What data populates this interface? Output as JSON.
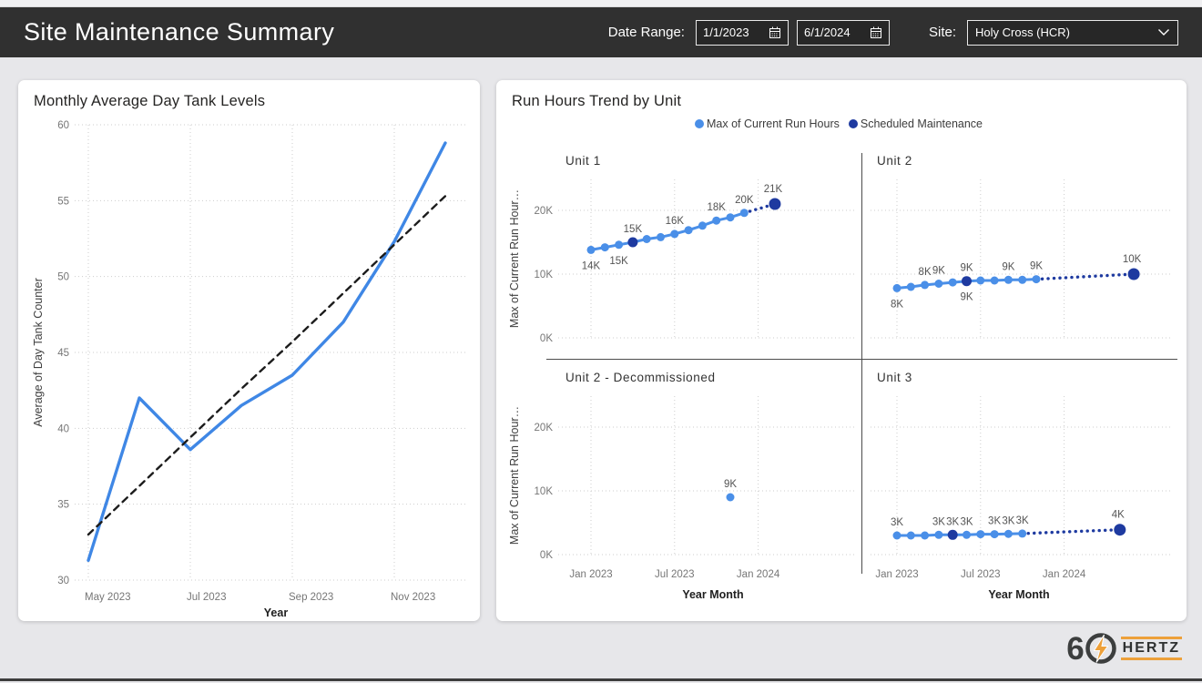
{
  "header": {
    "title": "Site Maintenance Summary",
    "date_range_label": "Date Range:",
    "date_from": "1/1/2023",
    "date_to": "6/1/2024",
    "site_label": "Site:",
    "site_value": "Holy Cross (HCR)"
  },
  "logo": {
    "digit": "6",
    "text": "HERTZ"
  },
  "colors": {
    "actual": "#4a8fe8",
    "scheduled": "#1e3aa0",
    "tank_line": "#3f87e5",
    "trend": "#1c1c1c"
  },
  "panels": {
    "run_hours": {
      "title": "Run Hours Trend by Unit",
      "y_axis_title": "Max of Current Run Hour…",
      "x_axis_title": "Year Month",
      "legend": [
        {
          "label": "Max of Current Run Hours",
          "color": "#4a8fe8"
        },
        {
          "label": "Scheduled Maintenance",
          "color": "#1e3aa0"
        }
      ]
    }
  },
  "chart_data": [
    {
      "id": "tank_levels",
      "type": "line",
      "title": "Monthly Average Day Tank Levels",
      "xlabel": "Year",
      "ylabel": "Average of Day Tank Counter",
      "ylim": [
        30,
        60
      ],
      "yticks": [
        30,
        35,
        40,
        45,
        50,
        55,
        60
      ],
      "x": [
        "May 2023",
        "Jun 2023",
        "Jul 2023",
        "Aug 2023",
        "Sep 2023",
        "Oct 2023",
        "Nov 2023",
        "Dec 2023"
      ],
      "xtick_idx": [
        0,
        2,
        4,
        6
      ],
      "xtick_labels": [
        "May 2023",
        "Jul 2023",
        "Sep 2023",
        "Nov 2023"
      ],
      "series": [
        {
          "name": "Average of Day Tank Counter",
          "style": "solid",
          "color": "#3f87e5",
          "values": [
            31.3,
            42,
            38.6,
            41.5,
            43.5,
            47,
            52.3,
            58.8
          ]
        },
        {
          "name": "Trend",
          "style": "dashed",
          "color": "#1c1c1c",
          "values": [
            33,
            36.2,
            39.4,
            42.6,
            45.7,
            48.9,
            52.1,
            55.3
          ]
        }
      ]
    },
    {
      "id": "unit1",
      "unit": true,
      "type": "line",
      "title": "Unit 1",
      "col": 0,
      "row": 0,
      "ylim": [
        0,
        25
      ],
      "yticks": [
        0,
        10,
        20
      ],
      "ytick_labels": [
        "0K",
        "10K",
        "20K"
      ],
      "xticks": [
        0,
        6,
        12
      ],
      "xtick_labels": [
        "Jan 2023",
        "Jul 2023",
        "Jan 2024"
      ],
      "actual": {
        "start_month": 0,
        "months": [
          "Jan 2023",
          "Feb 2023",
          "Mar 2023",
          "Apr 2023",
          "May 2023",
          "Jun 2023",
          "Jul 2023",
          "Aug 2023",
          "Sep 2023",
          "Oct 2023",
          "Nov 2023",
          "Dec 2023"
        ],
        "values": [
          13.8,
          14.2,
          14.6,
          15,
          15.5,
          15.8,
          16.3,
          16.9,
          17.6,
          18.4,
          18.9,
          19.6
        ]
      },
      "scheduled_month": 3,
      "forecast": {
        "month": 13.2,
        "month_label": "Feb 2024",
        "value": 21,
        "label": "21K"
      },
      "labels": [
        {
          "month": 0,
          "text": "14K",
          "pos": "below"
        },
        {
          "month": 2,
          "text": "15K",
          "pos": "below"
        },
        {
          "month": 3,
          "text": "15K",
          "pos": "above"
        },
        {
          "month": 6,
          "text": "16K",
          "pos": "above"
        },
        {
          "month": 9,
          "text": "18K",
          "pos": "above"
        },
        {
          "month": 11,
          "text": "20K",
          "pos": "above"
        }
      ]
    },
    {
      "id": "unit2",
      "unit": true,
      "type": "line",
      "title": "Unit 2",
      "col": 1,
      "row": 0,
      "ylim": [
        0,
        25
      ],
      "yticks": [
        0,
        10,
        20
      ],
      "ytick_labels": [
        "0K",
        "10K",
        "20K"
      ],
      "xticks": [
        0,
        6,
        12
      ],
      "xtick_labels": [
        "Jan 2023",
        "Jul 2023",
        "Jan 2024"
      ],
      "actual": {
        "start_month": 0,
        "months": [
          "Jan 2023",
          "Feb 2023",
          "Mar 2023",
          "Apr 2023",
          "May 2023",
          "Jun 2023",
          "Jul 2023",
          "Aug 2023",
          "Sep 2023",
          "Oct 2023",
          "Nov 2023"
        ],
        "values": [
          7.8,
          8,
          8.3,
          8.5,
          8.7,
          8.9,
          9,
          9,
          9.1,
          9.1,
          9.2
        ]
      },
      "scheduled_month": 5,
      "forecast": {
        "month": 17,
        "month_label": "Jun 2024",
        "value": 10,
        "label": "10K"
      },
      "labels": [
        {
          "month": 0,
          "text": "8K",
          "pos": "below"
        },
        {
          "month": 2,
          "text": "8K",
          "pos": "above"
        },
        {
          "month": 3,
          "text": "9K",
          "pos": "above"
        },
        {
          "month": 5,
          "text": "9K",
          "pos": "above"
        },
        {
          "month": 5,
          "text": "9K",
          "pos": "below"
        },
        {
          "month": 8,
          "text": "9K",
          "pos": "above"
        },
        {
          "month": 10,
          "text": "9K",
          "pos": "above"
        }
      ]
    },
    {
      "id": "unit2d",
      "unit": true,
      "type": "scatter",
      "title": "Unit 2 - Decommissioned",
      "col": 0,
      "row": 1,
      "ylim": [
        0,
        25
      ],
      "yticks": [
        0,
        10,
        20
      ],
      "ytick_labels": [
        "0K",
        "10K",
        "20K"
      ],
      "xticks": [
        0,
        6,
        12
      ],
      "xtick_labels": [
        "Jan 2023",
        "Jul 2023",
        "Jan 2024"
      ],
      "actual": {
        "start_month": 10,
        "months": [
          "Nov 2023"
        ],
        "values": [
          9
        ]
      },
      "labels": [
        {
          "month": 10,
          "text": "9K",
          "pos": "above"
        }
      ]
    },
    {
      "id": "unit3",
      "unit": true,
      "type": "line",
      "title": "Unit 3",
      "col": 1,
      "row": 1,
      "ylim": [
        0,
        25
      ],
      "yticks": [
        0,
        10,
        20
      ],
      "ytick_labels": [
        "0K",
        "10K",
        "20K"
      ],
      "xticks": [
        0,
        6,
        12
      ],
      "xtick_labels": [
        "Jan 2023",
        "Jul 2023",
        "Jan 2024"
      ],
      "actual": {
        "start_month": 0,
        "months": [
          "Jan 2023",
          "Feb 2023",
          "Mar 2023",
          "Apr 2023",
          "May 2023",
          "Jun 2023",
          "Jul 2023",
          "Aug 2023",
          "Sep 2023",
          "Oct 2023"
        ],
        "values": [
          3,
          3,
          3,
          3.1,
          3.1,
          3.1,
          3.2,
          3.2,
          3.25,
          3.3
        ]
      },
      "scheduled_month": 4,
      "forecast": {
        "month": 16,
        "month_label": "May 2024",
        "value": 3.9,
        "label": "4K"
      },
      "labels": [
        {
          "month": 0,
          "text": "3K",
          "pos": "above"
        },
        {
          "month": 3,
          "text": "3K",
          "pos": "above"
        },
        {
          "month": 4,
          "text": "3K",
          "pos": "above"
        },
        {
          "month": 5,
          "text": "3K",
          "pos": "above"
        },
        {
          "month": 7,
          "text": "3K",
          "pos": "above"
        },
        {
          "month": 8,
          "text": "3K",
          "pos": "above"
        },
        {
          "month": 9,
          "text": "3K",
          "pos": "above"
        }
      ]
    }
  ]
}
